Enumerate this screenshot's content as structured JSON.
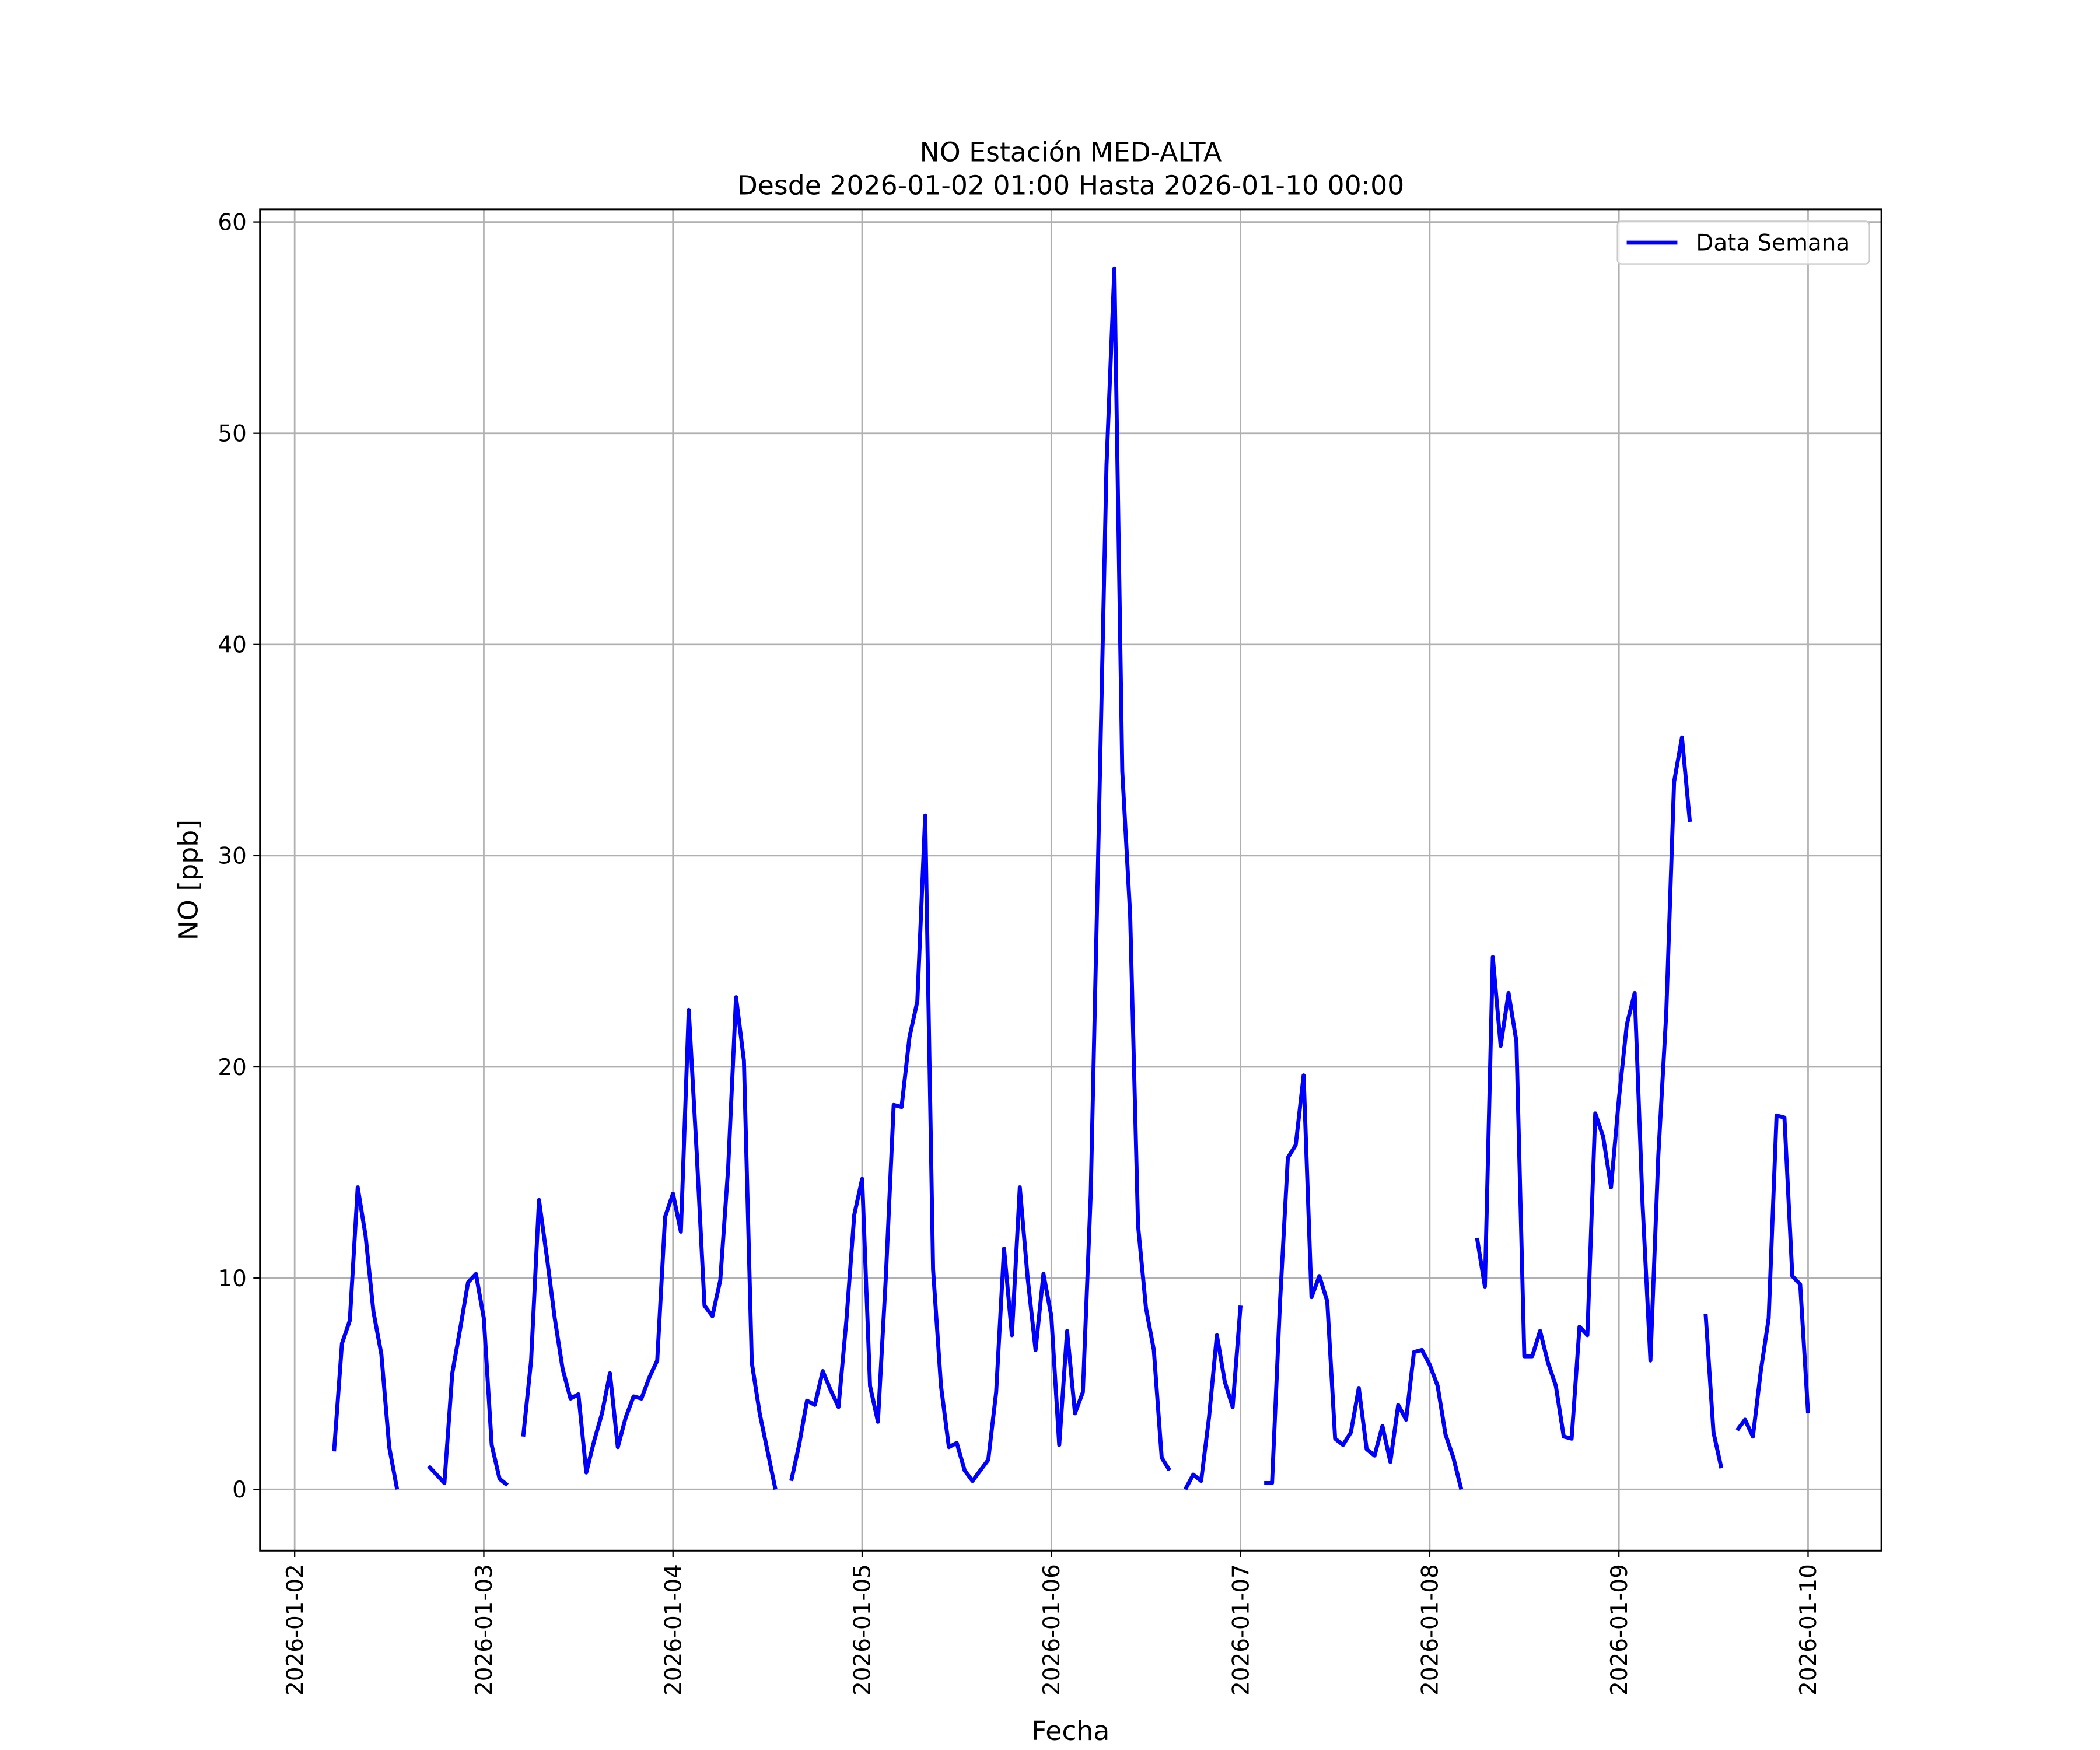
{
  "chart_data": {
    "type": "line",
    "title": "NO Estación MED-ALTA",
    "subtitle": "Desde 2026-01-02 01:00 Hasta 2026-01-10 00:00",
    "x_label": "Fecha",
    "y_label": "NO [ppb]",
    "x": [
      "2026-01-02 01:00",
      "2026-01-02 02:00",
      "2026-01-02 03:00",
      "2026-01-02 04:00",
      "2026-01-02 05:00",
      "2026-01-02 06:00",
      "2026-01-02 07:00",
      "2026-01-02 08:00",
      "2026-01-02 09:00",
      "2026-01-02 10:00",
      "2026-01-02 11:00",
      "2026-01-02 12:00",
      "2026-01-02 13:00",
      "2026-01-02 14:00",
      "2026-01-02 15:00",
      "2026-01-02 16:00",
      "2026-01-02 17:00",
      "2026-01-02 18:00",
      "2026-01-02 19:00",
      "2026-01-02 20:00",
      "2026-01-02 21:00",
      "2026-01-02 22:00",
      "2026-01-02 23:00",
      "2026-01-03 00:00",
      "2026-01-03 01:00",
      "2026-01-03 02:00",
      "2026-01-03 03:00",
      "2026-01-03 04:00",
      "2026-01-03 05:00",
      "2026-01-03 06:00",
      "2026-01-03 07:00",
      "2026-01-03 08:00",
      "2026-01-03 09:00",
      "2026-01-03 10:00",
      "2026-01-03 11:00",
      "2026-01-03 12:00",
      "2026-01-03 13:00",
      "2026-01-03 14:00",
      "2026-01-03 15:00",
      "2026-01-03 16:00",
      "2026-01-03 17:00",
      "2026-01-03 18:00",
      "2026-01-03 19:00",
      "2026-01-03 20:00",
      "2026-01-03 21:00",
      "2026-01-03 22:00",
      "2026-01-03 23:00",
      "2026-01-04 00:00",
      "2026-01-04 01:00",
      "2026-01-04 02:00",
      "2026-01-04 03:00",
      "2026-01-04 04:00",
      "2026-01-04 05:00",
      "2026-01-04 06:00",
      "2026-01-04 07:00",
      "2026-01-04 08:00",
      "2026-01-04 09:00",
      "2026-01-04 10:00",
      "2026-01-04 11:00",
      "2026-01-04 12:00",
      "2026-01-04 13:00",
      "2026-01-04 14:00",
      "2026-01-04 15:00",
      "2026-01-04 16:00",
      "2026-01-04 17:00",
      "2026-01-04 18:00",
      "2026-01-04 19:00",
      "2026-01-04 20:00",
      "2026-01-04 21:00",
      "2026-01-04 22:00",
      "2026-01-04 23:00",
      "2026-01-05 00:00",
      "2026-01-05 01:00",
      "2026-01-05 02:00",
      "2026-01-05 03:00",
      "2026-01-05 04:00",
      "2026-01-05 05:00",
      "2026-01-05 06:00",
      "2026-01-05 07:00",
      "2026-01-05 08:00",
      "2026-01-05 09:00",
      "2026-01-05 10:00",
      "2026-01-05 11:00",
      "2026-01-05 12:00",
      "2026-01-05 13:00",
      "2026-01-05 14:00",
      "2026-01-05 15:00",
      "2026-01-05 16:00",
      "2026-01-05 17:00",
      "2026-01-05 18:00",
      "2026-01-05 19:00",
      "2026-01-05 20:00",
      "2026-01-05 21:00",
      "2026-01-05 22:00",
      "2026-01-05 23:00",
      "2026-01-06 00:00",
      "2026-01-06 01:00",
      "2026-01-06 02:00",
      "2026-01-06 03:00",
      "2026-01-06 04:00",
      "2026-01-06 05:00",
      "2026-01-06 06:00",
      "2026-01-06 07:00",
      "2026-01-06 08:00",
      "2026-01-06 09:00",
      "2026-01-06 10:00",
      "2026-01-06 11:00",
      "2026-01-06 12:00",
      "2026-01-06 13:00",
      "2026-01-06 14:00",
      "2026-01-06 15:00",
      "2026-01-06 16:00",
      "2026-01-06 17:00",
      "2026-01-06 18:00",
      "2026-01-06 19:00",
      "2026-01-06 20:00",
      "2026-01-06 21:00",
      "2026-01-06 22:00",
      "2026-01-06 23:00",
      "2026-01-07 00:00",
      "2026-01-07 01:00",
      "2026-01-07 02:00",
      "2026-01-07 03:00",
      "2026-01-07 04:00",
      "2026-01-07 05:00",
      "2026-01-07 06:00",
      "2026-01-07 07:00",
      "2026-01-07 08:00",
      "2026-01-07 09:00",
      "2026-01-07 10:00",
      "2026-01-07 11:00",
      "2026-01-07 12:00",
      "2026-01-07 13:00",
      "2026-01-07 14:00",
      "2026-01-07 15:00",
      "2026-01-07 16:00",
      "2026-01-07 17:00",
      "2026-01-07 18:00",
      "2026-01-07 19:00",
      "2026-01-07 20:00",
      "2026-01-07 21:00",
      "2026-01-07 22:00",
      "2026-01-07 23:00",
      "2026-01-08 00:00",
      "2026-01-08 01:00",
      "2026-01-08 02:00",
      "2026-01-08 03:00",
      "2026-01-08 04:00",
      "2026-01-08 05:00",
      "2026-01-08 06:00",
      "2026-01-08 07:00",
      "2026-01-08 08:00",
      "2026-01-08 09:00",
      "2026-01-08 10:00",
      "2026-01-08 11:00",
      "2026-01-08 12:00",
      "2026-01-08 13:00",
      "2026-01-08 14:00",
      "2026-01-08 15:00",
      "2026-01-08 16:00",
      "2026-01-08 17:00",
      "2026-01-08 18:00",
      "2026-01-08 19:00",
      "2026-01-08 20:00",
      "2026-01-08 21:00",
      "2026-01-08 22:00",
      "2026-01-08 23:00",
      "2026-01-09 00:00",
      "2026-01-09 01:00",
      "2026-01-09 02:00",
      "2026-01-09 03:00",
      "2026-01-09 04:00",
      "2026-01-09 05:00",
      "2026-01-09 06:00",
      "2026-01-09 07:00",
      "2026-01-09 08:00",
      "2026-01-09 09:00",
      "2026-01-09 10:00",
      "2026-01-09 11:00",
      "2026-01-09 12:00",
      "2026-01-09 13:00",
      "2026-01-09 14:00",
      "2026-01-09 15:00",
      "2026-01-09 16:00",
      "2026-01-09 17:00",
      "2026-01-09 18:00",
      "2026-01-09 19:00",
      "2026-01-09 20:00",
      "2026-01-09 21:00",
      "2026-01-09 22:00",
      "2026-01-09 23:00",
      "2026-01-10 00:00"
    ],
    "series": [
      {
        "name": "Data Semana",
        "color": "#0000ff",
        "values": [
          null,
          null,
          null,
          null,
          1.8,
          6.9,
          8.0,
          14.3,
          12.0,
          8.4,
          6.4,
          2.0,
          0.0,
          null,
          null,
          null,
          1.1,
          0.7,
          0.3,
          5.5,
          7.6,
          9.8,
          10.2,
          8.1,
          2.1,
          0.5,
          0.2,
          null,
          2.5,
          6.1,
          13.7,
          11.0,
          8.1,
          5.7,
          4.3,
          4.5,
          0.8,
          2.3,
          3.6,
          5.5,
          2.0,
          3.4,
          4.4,
          4.3,
          5.3,
          6.1,
          12.9,
          14.0,
          12.2,
          22.7,
          16.0,
          8.7,
          8.2,
          9.9,
          15.2,
          23.3,
          20.3,
          6.0,
          3.6,
          1.8,
          0.0,
          null,
          0.4,
          2.1,
          4.2,
          4.0,
          5.6,
          4.7,
          3.9,
          8.0,
          13.0,
          14.7,
          4.9,
          3.2,
          10.0,
          18.2,
          18.1,
          21.4,
          23.1,
          31.9,
          10.4,
          4.9,
          2.0,
          2.2,
          0.9,
          0.4,
          0.9,
          1.4,
          4.6,
          11.4,
          7.3,
          14.3,
          10.0,
          6.6,
          10.2,
          8.2,
          2.1,
          7.5,
          3.6,
          4.6,
          14.0,
          31.0,
          48.5,
          57.8,
          34.0,
          27.2,
          12.5,
          8.6,
          6.6,
          1.5,
          0.9,
          null,
          0.0,
          0.7,
          0.4,
          3.4,
          7.3,
          5.1,
          3.9,
          8.7,
          null,
          null,
          0.3,
          0.3,
          8.8,
          15.7,
          16.3,
          19.6,
          9.1,
          10.1,
          8.9,
          2.4,
          2.1,
          2.7,
          4.8,
          1.9,
          1.6,
          3.0,
          1.3,
          4.0,
          3.3,
          6.5,
          6.6,
          5.9,
          4.9,
          2.6,
          1.5,
          0.0,
          null,
          11.9,
          9.6,
          25.2,
          21.0,
          23.5,
          21.2,
          6.3,
          6.3,
          7.5,
          6.0,
          4.9,
          2.5,
          2.4,
          7.7,
          7.3,
          17.8,
          16.7,
          14.3,
          18.5,
          22.0,
          23.5,
          13.5,
          6.1,
          15.8,
          22.5,
          33.5,
          35.6,
          31.6,
          null,
          8.3,
          2.7,
          1.0,
          null,
          2.8,
          3.3,
          2.5,
          5.6,
          8.1,
          17.7,
          17.6,
          10.1,
          9.7,
          3.6
        ]
      }
    ],
    "xlim": [
      "2026-01-01 19:36",
      "2026-01-10 09:18"
    ],
    "xticks": [
      "2026-01-02",
      "2026-01-03",
      "2026-01-04",
      "2026-01-05",
      "2026-01-06",
      "2026-01-07",
      "2026-01-08",
      "2026-01-09",
      "2026-01-10"
    ],
    "ylim": [
      -2.9,
      60.6
    ],
    "yticks": [
      0,
      10,
      20,
      30,
      40,
      50,
      60
    ],
    "grid": true,
    "legend": "upper right"
  }
}
